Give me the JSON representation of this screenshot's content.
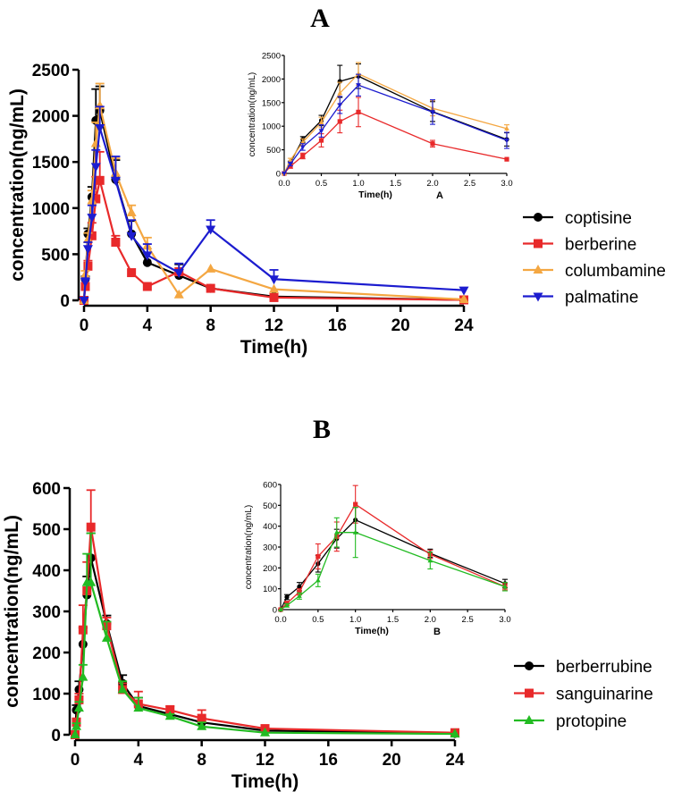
{
  "chart_data": [
    {
      "type": "line",
      "panel": "A",
      "title": "A",
      "xlabel": "Time(h)",
      "ylabel": "concentration(ng/mL)",
      "xlim": [
        0,
        24
      ],
      "ylim": [
        0,
        2500
      ],
      "xticks": [
        0,
        4,
        8,
        12,
        16,
        20,
        24
      ],
      "yticks": [
        0,
        500,
        1000,
        1500,
        2000,
        2500
      ],
      "legend_position": "right",
      "series": [
        {
          "name": "coptisine",
          "color": "#000000",
          "marker": "circle",
          "x": [
            0,
            0.083,
            0.25,
            0.5,
            0.75,
            1,
            2,
            3,
            4,
            6,
            8,
            12,
            24
          ],
          "y": [
            0,
            230,
            720,
            1120,
            1950,
            2060,
            1310,
            720,
            410,
            270,
            130,
            40,
            5
          ],
          "err": [
            0,
            30,
            60,
            110,
            340,
            260,
            210,
            140,
            0,
            120,
            0,
            0,
            0
          ]
        },
        {
          "name": "berberine",
          "color": "#e8292a",
          "marker": "square",
          "x": [
            0,
            0.083,
            0.25,
            0.5,
            0.75,
            1,
            2,
            3,
            4,
            6,
            8,
            12,
            24
          ],
          "y": [
            0,
            150,
            370,
            700,
            1100,
            1300,
            630,
            300,
            150,
            310,
            130,
            30,
            5
          ],
          "err": [
            0,
            40,
            60,
            140,
            240,
            310,
            70,
            0,
            0,
            0,
            0,
            0,
            0
          ]
        },
        {
          "name": "columbamine",
          "color": "#f4a742",
          "marker": "triangle-up",
          "x": [
            0,
            0.083,
            0.25,
            0.5,
            0.75,
            1,
            2,
            3,
            4,
            6,
            8,
            12,
            24
          ],
          "y": [
            0,
            280,
            660,
            1080,
            1700,
            2110,
            1380,
            950,
            590,
            60,
            340,
            120,
            10
          ],
          "err": [
            0,
            40,
            70,
            110,
            230,
            240,
            160,
            80,
            90,
            0,
            0,
            0,
            0
          ]
        },
        {
          "name": "palmatine",
          "color": "#1c1ccf",
          "marker": "triangle-down",
          "x": [
            0,
            0.083,
            0.25,
            0.5,
            0.75,
            1,
            2,
            3,
            4,
            6,
            8,
            12,
            24
          ],
          "y": [
            0,
            200,
            560,
            900,
            1450,
            1870,
            1300,
            700,
            490,
            300,
            770,
            230,
            110
          ],
          "err": [
            0,
            40,
            70,
            130,
            180,
            230,
            260,
            170,
            120,
            100,
            100,
            100,
            0
          ]
        }
      ]
    },
    {
      "type": "line",
      "panel": "A-inset",
      "xlabel": "Time(h)",
      "ylabel": "concentration(ng/mL)",
      "caption": "A",
      "xlim": [
        0,
        3
      ],
      "ylim": [
        0,
        2500
      ],
      "xticks": [
        "0.0",
        "0.5",
        "1.0",
        "1.5",
        "2.0",
        "2.5",
        "3.0"
      ],
      "yticks": [
        0,
        500,
        1000,
        1500,
        2000,
        2500
      ],
      "series": [
        {
          "name": "coptisine",
          "color": "#000000",
          "marker": "circle",
          "x": [
            0,
            0.083,
            0.25,
            0.5,
            0.75,
            1,
            2,
            3
          ],
          "y": [
            0,
            230,
            720,
            1120,
            1950,
            2060,
            1310,
            720
          ],
          "err": [
            0,
            30,
            60,
            110,
            340,
            260,
            210,
            140
          ]
        },
        {
          "name": "berberine",
          "color": "#e8292a",
          "marker": "square",
          "x": [
            0,
            0.083,
            0.25,
            0.5,
            0.75,
            1,
            2,
            3
          ],
          "y": [
            0,
            150,
            370,
            700,
            1100,
            1300,
            630,
            300
          ],
          "err": [
            0,
            40,
            60,
            140,
            240,
            310,
            70,
            0
          ]
        },
        {
          "name": "columbamine",
          "color": "#f4a742",
          "marker": "triangle-up",
          "x": [
            0,
            0.083,
            0.25,
            0.5,
            0.75,
            1,
            2,
            3
          ],
          "y": [
            0,
            280,
            660,
            1080,
            1700,
            2110,
            1380,
            950
          ],
          "err": [
            0,
            40,
            70,
            110,
            230,
            240,
            160,
            80
          ]
        },
        {
          "name": "palmatine",
          "color": "#1c1ccf",
          "marker": "triangle-down",
          "x": [
            0,
            0.083,
            0.25,
            0.5,
            0.75,
            1,
            2,
            3
          ],
          "y": [
            0,
            200,
            560,
            900,
            1450,
            1870,
            1300,
            700
          ],
          "err": [
            0,
            40,
            70,
            130,
            180,
            230,
            260,
            170
          ]
        }
      ]
    },
    {
      "type": "line",
      "panel": "B",
      "title": "B",
      "xlabel": "Time(h)",
      "ylabel": "concentration(ng/mL)",
      "xlim": [
        0,
        24
      ],
      "ylim": [
        0,
        600
      ],
      "xticks": [
        0,
        4,
        8,
        12,
        16,
        20,
        24
      ],
      "yticks": [
        0,
        100,
        200,
        300,
        400,
        500,
        600
      ],
      "legend_position": "right",
      "series": [
        {
          "name": "berberrubine",
          "color": "#000000",
          "marker": "circle",
          "x": [
            0,
            0.083,
            0.25,
            0.5,
            0.75,
            1,
            2,
            3,
            4,
            6,
            8,
            12,
            24
          ],
          "y": [
            0,
            60,
            110,
            220,
            340,
            430,
            270,
            125,
            70,
            50,
            30,
            10,
            3
          ],
          "err": [
            0,
            12,
            20,
            40,
            45,
            60,
            20,
            20,
            20,
            5,
            10,
            0,
            0
          ]
        },
        {
          "name": "sanguinarine",
          "color": "#e8292a",
          "marker": "square",
          "x": [
            0,
            0.083,
            0.25,
            0.5,
            0.75,
            1,
            2,
            3,
            4,
            6,
            8,
            12,
            24
          ],
          "y": [
            0,
            30,
            85,
            255,
            350,
            505,
            265,
            110,
            75,
            60,
            40,
            15,
            5
          ],
          "err": [
            0,
            10,
            15,
            60,
            70,
            90,
            20,
            15,
            30,
            10,
            20,
            0,
            0
          ]
        },
        {
          "name": "protopine",
          "color": "#22bb22",
          "marker": "triangle-up",
          "x": [
            0,
            0.083,
            0.25,
            0.5,
            0.75,
            1,
            2,
            3,
            4,
            6,
            8,
            12,
            24
          ],
          "y": [
            0,
            20,
            65,
            140,
            370,
            370,
            235,
            110,
            65,
            45,
            20,
            5,
            2
          ],
          "err": [
            0,
            8,
            15,
            30,
            70,
            120,
            40,
            20,
            25,
            5,
            10,
            0,
            0
          ]
        }
      ]
    },
    {
      "type": "line",
      "panel": "B-inset",
      "xlabel": "Time(h)",
      "ylabel": "concentration(ng/mL)",
      "caption": "B",
      "xlim": [
        0,
        3
      ],
      "ylim": [
        0,
        600
      ],
      "xticks": [
        "0.0",
        "0.5",
        "1.0",
        "1.5",
        "2.0",
        "2.5",
        "3.0"
      ],
      "yticks": [
        0,
        100,
        200,
        300,
        400,
        500,
        600
      ],
      "series": [
        {
          "name": "berberrubine",
          "color": "#000000",
          "marker": "circle",
          "x": [
            0,
            0.083,
            0.25,
            0.5,
            0.75,
            1,
            2,
            3
          ],
          "y": [
            0,
            60,
            110,
            220,
            340,
            430,
            270,
            125
          ],
          "err": [
            0,
            12,
            20,
            40,
            45,
            60,
            20,
            20
          ]
        },
        {
          "name": "sanguinarine",
          "color": "#e8292a",
          "marker": "square",
          "x": [
            0,
            0.083,
            0.25,
            0.5,
            0.75,
            1,
            2,
            3
          ],
          "y": [
            0,
            30,
            85,
            255,
            350,
            505,
            265,
            110
          ],
          "err": [
            0,
            10,
            15,
            60,
            70,
            90,
            20,
            15
          ]
        },
        {
          "name": "protopine",
          "color": "#22bb22",
          "marker": "triangle-up",
          "x": [
            0,
            0.083,
            0.25,
            0.5,
            0.75,
            1,
            2,
            3
          ],
          "y": [
            0,
            20,
            65,
            140,
            370,
            370,
            235,
            110
          ],
          "err": [
            0,
            8,
            15,
            30,
            70,
            120,
            40,
            20
          ]
        }
      ]
    }
  ]
}
